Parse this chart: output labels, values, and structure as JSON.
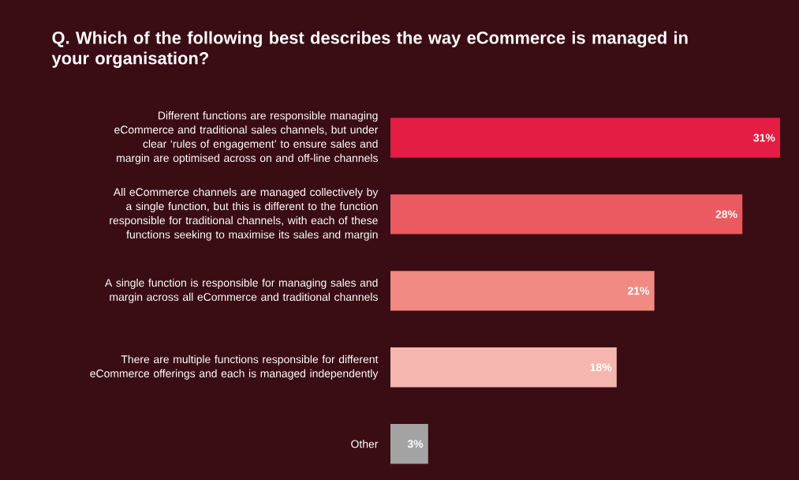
{
  "chart_data": {
    "type": "bar",
    "orientation": "horizontal",
    "title": "Q. Which of the following best describes the way eCommerce is managed in your organisation?",
    "categories": [
      "Different functions are responsible managing eCommerce and traditional sales channels, but under clear ‘rules of engagement’ to ensure sales and margin are optimised across on and off-line channels",
      "All eCommerce channels are managed collectively by a single function, but this is different to the function responsible for traditional channels, with each of these functions seeking to maximise its sales and margin",
      "A single function is responsible for managing sales and margin across all eCommerce and traditional channels",
      "There are multiple functions responsible for different eCommerce offerings and each is managed independently",
      "Other"
    ],
    "values": [
      31,
      28,
      21,
      18,
      3
    ],
    "value_labels": [
      "31%",
      "28%",
      "21%",
      "18%",
      "3%"
    ],
    "colors": [
      "#e31d43",
      "#ea5a60",
      "#f08a83",
      "#f4b6ae",
      "#a3a3a3"
    ],
    "xlim": [
      0,
      31
    ]
  }
}
